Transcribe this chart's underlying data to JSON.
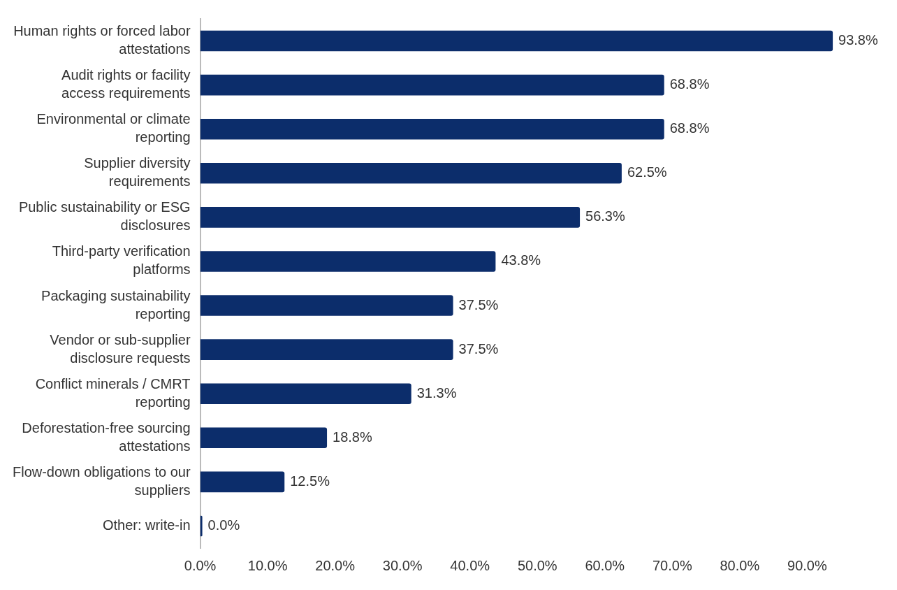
{
  "chart_data": {
    "type": "bar",
    "orientation": "horizontal",
    "categories": [
      "Human rights or forced labor attestations",
      "Audit rights or facility access requirements",
      "Environmental or climate reporting",
      "Supplier diversity requirements",
      "Public sustainability or ESG disclosures",
      "Third-party verification platforms",
      "Packaging sustainability reporting",
      "Vendor or sub-supplier disclosure requests",
      "Conflict minerals / CMRT reporting",
      "Deforestation-free sourcing attestations",
      "Flow-down obligations to our suppliers",
      "Other: write-in"
    ],
    "values": [
      93.8,
      68.8,
      68.8,
      62.5,
      56.3,
      43.8,
      37.5,
      37.5,
      31.3,
      18.8,
      12.5,
      0.0
    ],
    "value_labels": [
      "93.8%",
      "68.8%",
      "68.8%",
      "62.5%",
      "56.3%",
      "43.8%",
      "37.5%",
      "37.5%",
      "31.3%",
      "18.8%",
      "12.5%",
      "0.0%"
    ],
    "color": "#0c2d6b",
    "xlim": [
      0,
      94
    ],
    "xticks": [
      {
        "value": 0,
        "label": "0.0%"
      },
      {
        "value": 10,
        "label": "10.0%"
      },
      {
        "value": 20,
        "label": "20.0%"
      },
      {
        "value": 30,
        "label": "30.0%"
      },
      {
        "value": 40,
        "label": "40.0%"
      },
      {
        "value": 50,
        "label": "50.0%"
      },
      {
        "value": 60,
        "label": "60.0%"
      },
      {
        "value": 70,
        "label": "70.0%"
      },
      {
        "value": 80,
        "label": "80.0%"
      },
      {
        "value": 90,
        "label": "90.0%"
      }
    ],
    "grid": false,
    "legend": false
  }
}
